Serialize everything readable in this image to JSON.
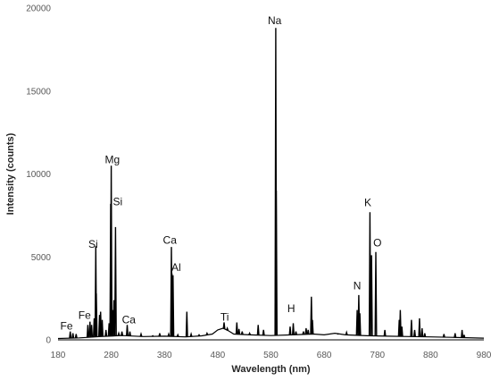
{
  "chart_data": {
    "type": "line",
    "title": "",
    "xlabel": "Wavelength (nm)",
    "ylabel": "Intensity (counts)",
    "xlim": [
      180,
      980
    ],
    "ylim": [
      0,
      20000
    ],
    "x_ticks": [
      180,
      280,
      380,
      480,
      580,
      680,
      780,
      880,
      980
    ],
    "y_ticks": [
      0,
      5000,
      10000,
      15000,
      20000
    ],
    "grid": false,
    "legend": "none",
    "line_color": "#000000",
    "baseline": [
      [
        180,
        80
      ],
      [
        220,
        120
      ],
      [
        260,
        200
      ],
      [
        300,
        260
      ],
      [
        340,
        200
      ],
      [
        380,
        220
      ],
      [
        420,
        180
      ],
      [
        450,
        240
      ],
      [
        470,
        350
      ],
      [
        480,
        600
      ],
      [
        490,
        700
      ],
      [
        500,
        550
      ],
      [
        510,
        350
      ],
      [
        540,
        300
      ],
      [
        580,
        260
      ],
      [
        620,
        300
      ],
      [
        660,
        350
      ],
      [
        680,
        300
      ],
      [
        700,
        400
      ],
      [
        720,
        300
      ],
      [
        760,
        250
      ],
      [
        800,
        220
      ],
      [
        840,
        200
      ],
      [
        880,
        180
      ],
      [
        920,
        150
      ],
      [
        980,
        100
      ]
    ],
    "peaks": [
      {
        "x": 203,
        "y": 500
      },
      {
        "x": 208,
        "y": 400
      },
      {
        "x": 214,
        "y": 350
      },
      {
        "x": 236,
        "y": 900
      },
      {
        "x": 240,
        "y": 1100
      },
      {
        "x": 243,
        "y": 900
      },
      {
        "x": 248,
        "y": 1300
      },
      {
        "x": 251,
        "y": 5650
      },
      {
        "x": 252,
        "y": 2800
      },
      {
        "x": 258,
        "y": 1500
      },
      {
        "x": 260,
        "y": 1700
      },
      {
        "x": 263,
        "y": 1200
      },
      {
        "x": 270,
        "y": 600
      },
      {
        "x": 276,
        "y": 1000
      },
      {
        "x": 279,
        "y": 8200
      },
      {
        "x": 280,
        "y": 10500
      },
      {
        "x": 283,
        "y": 1800
      },
      {
        "x": 285,
        "y": 2400
      },
      {
        "x": 288,
        "y": 6800
      },
      {
        "x": 294,
        "y": 400
      },
      {
        "x": 300,
        "y": 500
      },
      {
        "x": 310,
        "y": 900
      },
      {
        "x": 315,
        "y": 500
      },
      {
        "x": 336,
        "y": 350
      },
      {
        "x": 358,
        "y": 250
      },
      {
        "x": 371,
        "y": 400
      },
      {
        "x": 388,
        "y": 350
      },
      {
        "x": 393,
        "y": 5600
      },
      {
        "x": 394,
        "y": 4000
      },
      {
        "x": 396,
        "y": 3900
      },
      {
        "x": 405,
        "y": 300
      },
      {
        "x": 422,
        "y": 1700
      },
      {
        "x": 430,
        "y": 350
      },
      {
        "x": 445,
        "y": 300
      },
      {
        "x": 460,
        "y": 400
      },
      {
        "x": 492,
        "y": 1050
      },
      {
        "x": 498,
        "y": 700
      },
      {
        "x": 516,
        "y": 1050
      },
      {
        "x": 520,
        "y": 650
      },
      {
        "x": 526,
        "y": 500
      },
      {
        "x": 540,
        "y": 400
      },
      {
        "x": 556,
        "y": 900
      },
      {
        "x": 566,
        "y": 600
      },
      {
        "x": 589,
        "y": 18800
      },
      {
        "x": 590,
        "y": 9000
      },
      {
        "x": 616,
        "y": 800
      },
      {
        "x": 622,
        "y": 1000
      },
      {
        "x": 627,
        "y": 500
      },
      {
        "x": 641,
        "y": 500
      },
      {
        "x": 646,
        "y": 700
      },
      {
        "x": 650,
        "y": 600
      },
      {
        "x": 656,
        "y": 2600
      },
      {
        "x": 658,
        "y": 1200
      },
      {
        "x": 706,
        "y": 350
      },
      {
        "x": 722,
        "y": 450
      },
      {
        "x": 742,
        "y": 1800
      },
      {
        "x": 745,
        "y": 2700
      },
      {
        "x": 747,
        "y": 1600
      },
      {
        "x": 766,
        "y": 7700
      },
      {
        "x": 769,
        "y": 5100
      },
      {
        "x": 777,
        "y": 5300
      },
      {
        "x": 794,
        "y": 600
      },
      {
        "x": 821,
        "y": 1200
      },
      {
        "x": 823,
        "y": 1800
      },
      {
        "x": 826,
        "y": 800
      },
      {
        "x": 844,
        "y": 1200
      },
      {
        "x": 850,
        "y": 600
      },
      {
        "x": 859,
        "y": 1300
      },
      {
        "x": 864,
        "y": 700
      },
      {
        "x": 869,
        "y": 400
      },
      {
        "x": 905,
        "y": 350
      },
      {
        "x": 926,
        "y": 400
      },
      {
        "x": 939,
        "y": 600
      },
      {
        "x": 943,
        "y": 300
      }
    ],
    "annotations": [
      {
        "text": "Fe",
        "x": 196,
        "y": 630
      },
      {
        "text": "Fe",
        "x": 230,
        "y": 1270
      },
      {
        "text": "Si",
        "x": 246,
        "y": 5550
      },
      {
        "text": "Mg",
        "x": 282,
        "y": 10650
      },
      {
        "text": "Si",
        "x": 292,
        "y": 8100
      },
      {
        "text": "Ca",
        "x": 313,
        "y": 1000
      },
      {
        "text": "Ca",
        "x": 390,
        "y": 5800
      },
      {
        "text": "Al",
        "x": 402,
        "y": 4150
      },
      {
        "text": "Ti",
        "x": 493,
        "y": 1170
      },
      {
        "text": "Na",
        "x": 587,
        "y": 19040
      },
      {
        "text": "H",
        "x": 618,
        "y": 1680
      },
      {
        "text": "N",
        "x": 742,
        "y": 3050
      },
      {
        "text": "K",
        "x": 762,
        "y": 8050
      },
      {
        "text": "O",
        "x": 780,
        "y": 5640
      }
    ]
  }
}
